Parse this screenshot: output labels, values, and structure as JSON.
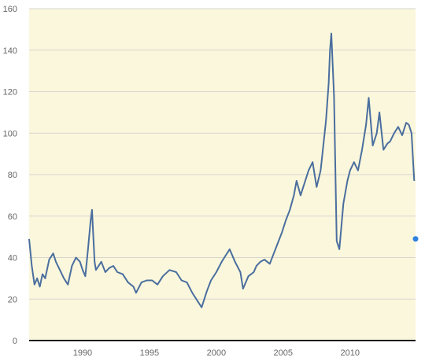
{
  "colors": {
    "plot_background": "#fbf7dc",
    "gridline": "#d6d6d0",
    "axis": "#1a1a1a",
    "line": "#4a6e9e",
    "point": "#2f80e0",
    "tick_text": "#666666"
  },
  "chart_data": {
    "type": "line",
    "title": "",
    "xlabel": "",
    "ylabel": "",
    "xlim": [
      1986.0,
      2014.9
    ],
    "ylim": [
      0,
      160
    ],
    "grid": "horizontal",
    "legend": "none",
    "x_ticks": [
      "1990",
      "1995",
      "2000",
      "2005",
      "2010"
    ],
    "y_ticks": [
      "0",
      "20",
      "40",
      "60",
      "80",
      "100",
      "120",
      "140",
      "160"
    ],
    "series": [
      {
        "x": [
          1986.0,
          1986.2,
          1986.4,
          1986.6,
          1986.8,
          1987.0,
          1987.2,
          1987.5,
          1987.8,
          1988.0,
          1988.3,
          1988.6,
          1988.9,
          1989.2,
          1989.5,
          1989.8,
          1990.0,
          1990.2,
          1990.4,
          1990.6,
          1990.7,
          1990.8,
          1990.9,
          1991.0,
          1991.2,
          1991.4,
          1991.7,
          1992.0,
          1992.3,
          1992.6,
          1993.0,
          1993.4,
          1993.8,
          1994.0,
          1994.4,
          1994.8,
          1995.2,
          1995.6,
          1996.0,
          1996.5,
          1997.0,
          1997.4,
          1997.8,
          1998.2,
          1998.6,
          1998.9,
          1999.0,
          1999.3,
          1999.6,
          2000.0,
          2000.4,
          2000.7,
          2001.0,
          2001.4,
          2001.8,
          2002.0,
          2002.4,
          2002.8,
          2003.0,
          2003.3,
          2003.6,
          2004.0,
          2004.3,
          2004.6,
          2004.9,
          2005.2,
          2005.5,
          2005.8,
          2006.0,
          2006.3,
          2006.6,
          2006.9,
          2007.2,
          2007.5,
          2007.8,
          2008.0,
          2008.2,
          2008.4,
          2008.5,
          2008.6,
          2008.8,
          2009.0,
          2009.2,
          2009.5,
          2009.8,
          2010.0,
          2010.3,
          2010.6,
          2010.9,
          2011.0,
          2011.2,
          2011.4,
          2011.7,
          2012.0,
          2012.2,
          2012.5,
          2012.8,
          2013.0,
          2013.3,
          2013.6,
          2013.9,
          2014.2,
          2014.4,
          2014.6,
          2014.8
        ],
        "values": [
          49,
          36,
          27,
          30,
          26,
          32,
          30,
          39,
          42,
          38,
          34,
          30,
          27,
          36,
          40,
          38,
          34,
          31,
          44,
          58,
          63,
          50,
          38,
          34,
          36,
          38,
          33,
          35,
          36,
          33,
          32,
          28,
          26,
          23,
          28,
          29,
          29,
          27,
          31,
          34,
          33,
          29,
          28,
          23,
          19,
          16,
          18,
          24,
          29,
          33,
          38,
          41,
          44,
          38,
          33,
          25,
          31,
          33,
          36,
          38,
          39,
          37,
          42,
          47,
          52,
          58,
          63,
          70,
          77,
          70,
          76,
          82,
          86,
          74,
          82,
          94,
          106,
          124,
          140,
          148,
          118,
          48,
          44,
          66,
          77,
          82,
          86,
          82,
          92,
          96,
          104,
          117,
          94,
          100,
          110,
          92,
          95,
          96,
          100,
          103,
          99,
          105,
          104,
          100,
          77
        ]
      }
    ],
    "points": [
      {
        "x": 2014.9,
        "value": 49
      }
    ]
  }
}
